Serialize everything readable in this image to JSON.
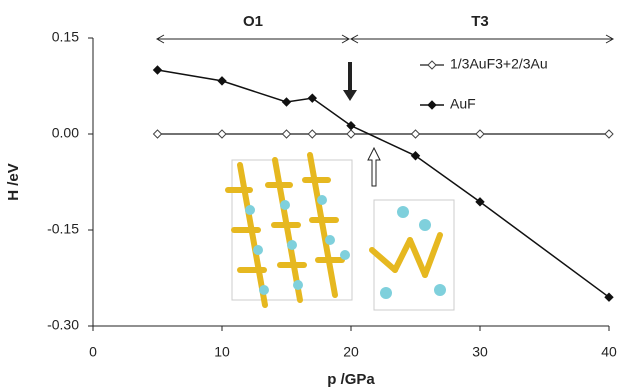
{
  "chart_data": {
    "type": "line",
    "x_label": "p /GPa",
    "y_label": "H /eV",
    "annotations": [
      "O1",
      "T3"
    ],
    "xlim": [
      0,
      40
    ],
    "xticks": [
      0,
      10,
      20,
      30,
      40
    ],
    "ylim": [
      -0.3,
      0.15
    ],
    "yticks": [
      {
        "value": -0.3,
        "label": "-0.30"
      },
      -0.15,
      {
        "value": 0,
        "label": "0.00"
      },
      0.15
    ],
    "legend": "upper right",
    "series": [
      {
        "name": "1/3AuF3+2/3Au",
        "color": "#444444",
        "marker": "open-diamond",
        "x": [
          5,
          10,
          15,
          17,
          20,
          25,
          30,
          40
        ],
        "values": [
          0,
          0,
          0,
          0,
          0,
          0,
          0,
          0
        ]
      },
      {
        "name": "AuF",
        "color": "#111111",
        "marker": "filled-diamond",
        "x": [
          5,
          10,
          15,
          17,
          20,
          25,
          30,
          40
        ],
        "values": [
          0.1,
          0.083,
          0.05,
          0.056,
          0.013,
          -0.034,
          -0.106,
          -0.255
        ]
      }
    ]
  }
}
